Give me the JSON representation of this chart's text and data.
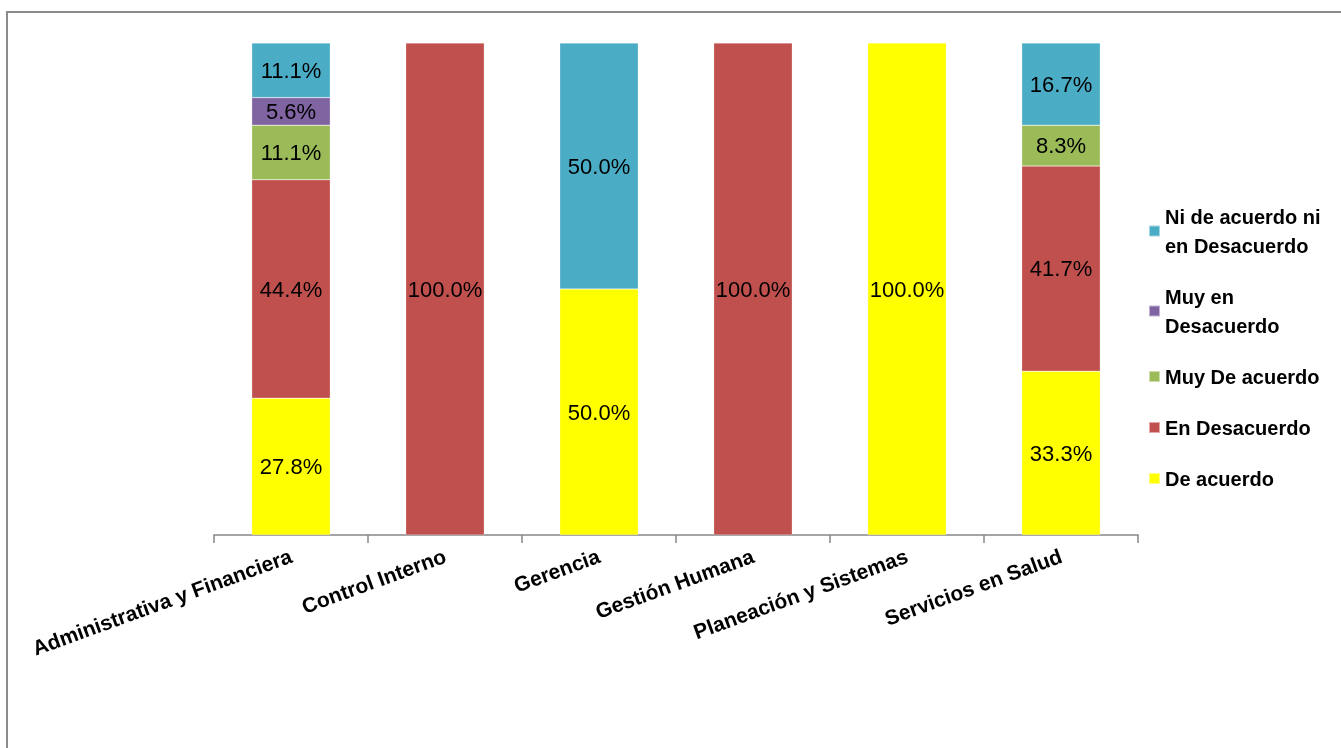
{
  "chart_data": {
    "type": "bar",
    "stacked": true,
    "categories": [
      "Administrativa y Financiera",
      "Control Interno",
      "Gerencia",
      "Gestión Humana",
      "Planeación y Sistemas",
      "Servicios en Salud"
    ],
    "series": [
      {
        "name": "De acuerdo",
        "color": "#ffff00",
        "values": [
          27.8,
          null,
          50.0,
          null,
          100.0,
          33.3
        ],
        "value_labels": [
          "27.8%",
          null,
          "50.0%",
          null,
          "100.0%",
          "33.3%"
        ]
      },
      {
        "name": "En Desacuerdo",
        "color": "#c0504d",
        "values": [
          44.4,
          100.0,
          null,
          100.0,
          null,
          41.7
        ],
        "value_labels": [
          "44.4%",
          "100.0%",
          null,
          "100.0%",
          null,
          "41.7%"
        ]
      },
      {
        "name": "Muy De acuerdo",
        "color": "#9bbb59",
        "values": [
          11.1,
          null,
          null,
          null,
          null,
          8.3
        ],
        "value_labels": [
          "11.1%",
          null,
          null,
          null,
          null,
          "8.3%"
        ]
      },
      {
        "name": "Muy en Desacuerdo",
        "color": "#8064a2",
        "values": [
          5.6,
          null,
          null,
          null,
          null,
          null
        ],
        "value_labels": [
          "5.6%",
          null,
          null,
          null,
          null,
          null
        ]
      },
      {
        "name": "Ni de acuerdo ni en Desacuerdo",
        "color": "#4bacc6",
        "values": [
          11.1,
          null,
          50.0,
          null,
          null,
          16.7
        ],
        "value_labels": [
          "11.1%",
          null,
          "50.0%",
          null,
          null,
          "16.7%"
        ]
      }
    ],
    "legend": "right",
    "grid": false,
    "tick_labels": "x"
  }
}
